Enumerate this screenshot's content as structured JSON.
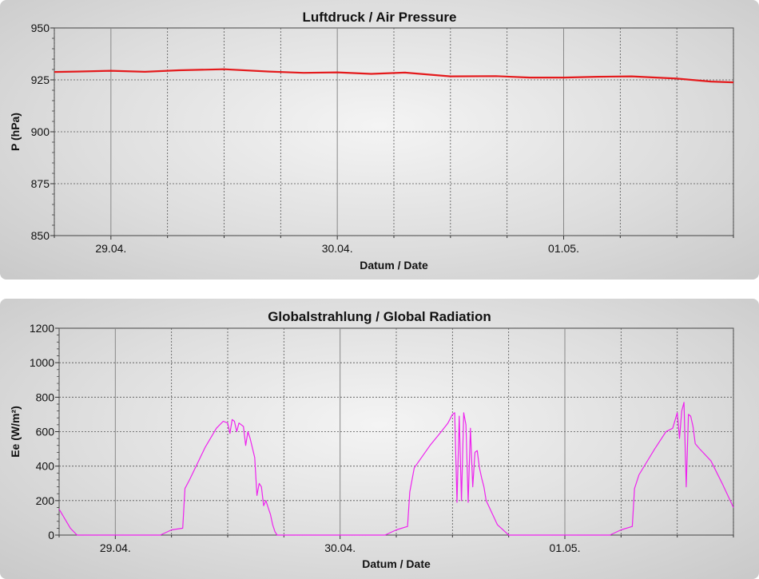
{
  "chart_data": [
    {
      "type": "line",
      "title": "Luftdruck / Air Pressure",
      "xlabel": "Datum / Date",
      "ylabel": "P (hPa)",
      "ylim": [
        850,
        950
      ],
      "yticks": [
        850,
        875,
        900,
        925,
        950
      ],
      "xtick_labels": [
        "29.04.",
        "30.04.",
        "01.05."
      ],
      "grid": true,
      "color": "#e41a1c",
      "series": [
        {
          "x": [
            -0.25,
            -0.15,
            0,
            0.15,
            0.3,
            0.5,
            0.7,
            0.85,
            1.0,
            1.15,
            1.3,
            1.5,
            1.7,
            1.85,
            2.0,
            2.15,
            2.3,
            2.5,
            2.65,
            2.75
          ],
          "values": [
            928.8,
            929.0,
            929.4,
            928.9,
            929.6,
            930.1,
            929.0,
            928.4,
            928.6,
            927.9,
            928.5,
            926.7,
            926.8,
            926.1,
            926.1,
            926.5,
            926.7,
            925.6,
            924.2,
            923.8
          ]
        }
      ]
    },
    {
      "type": "line",
      "title": "Globalstrahlung / Global Radiation",
      "xlabel": "Datum / Date",
      "ylabel": "Ee (W/m²)",
      "ylim": [
        0,
        1200
      ],
      "yticks": [
        0,
        200,
        400,
        600,
        800,
        1000,
        1200
      ],
      "xtick_labels": [
        "29.04.",
        "30.04.",
        "01.05."
      ],
      "grid": true,
      "color": "#ee22ee",
      "series": [
        {
          "x": [
            -0.25,
            -0.2,
            -0.17,
            0,
            0.2,
            0.25,
            0.3,
            0.31,
            0.33,
            0.4,
            0.45,
            0.48,
            0.5,
            0.51,
            0.52,
            0.53,
            0.54,
            0.55,
            0.57,
            0.58,
            0.59,
            0.6,
            0.62,
            0.63,
            0.64,
            0.65,
            0.66,
            0.67,
            0.68,
            0.69,
            0.7,
            0.71,
            0.72,
            0.73,
            0.75,
            0.8,
            1.0,
            1.2,
            1.25,
            1.3,
            1.31,
            1.33,
            1.4,
            1.45,
            1.48,
            1.5,
            1.51,
            1.52,
            1.53,
            1.54,
            1.55,
            1.56,
            1.57,
            1.58,
            1.59,
            1.6,
            1.61,
            1.62,
            1.63,
            1.64,
            1.65,
            1.7,
            1.75,
            1.8,
            2.0,
            2.2,
            2.25,
            2.3,
            2.31,
            2.33,
            2.4,
            2.45,
            2.48,
            2.5,
            2.51,
            2.52,
            2.53,
            2.54,
            2.55,
            2.56,
            2.57,
            2.58,
            2.6,
            2.65,
            2.7,
            2.75
          ],
          "values": [
            150,
            40,
            0,
            0,
            0,
            30,
            40,
            270,
            320,
            510,
            620,
            660,
            650,
            590,
            670,
            660,
            600,
            650,
            630,
            520,
            600,
            560,
            450,
            230,
            300,
            280,
            170,
            200,
            160,
            120,
            60,
            20,
            0,
            0,
            0,
            0,
            0,
            0,
            30,
            50,
            250,
            390,
            520,
            600,
            650,
            700,
            710,
            190,
            690,
            200,
            710,
            640,
            190,
            620,
            280,
            480,
            490,
            390,
            330,
            280,
            200,
            60,
            0,
            0,
            0,
            0,
            30,
            50,
            270,
            350,
            500,
            600,
            620,
            710,
            560,
            720,
            770,
            280,
            700,
            690,
            630,
            530,
            500,
            430,
            300,
            160
          ]
        }
      ]
    }
  ]
}
